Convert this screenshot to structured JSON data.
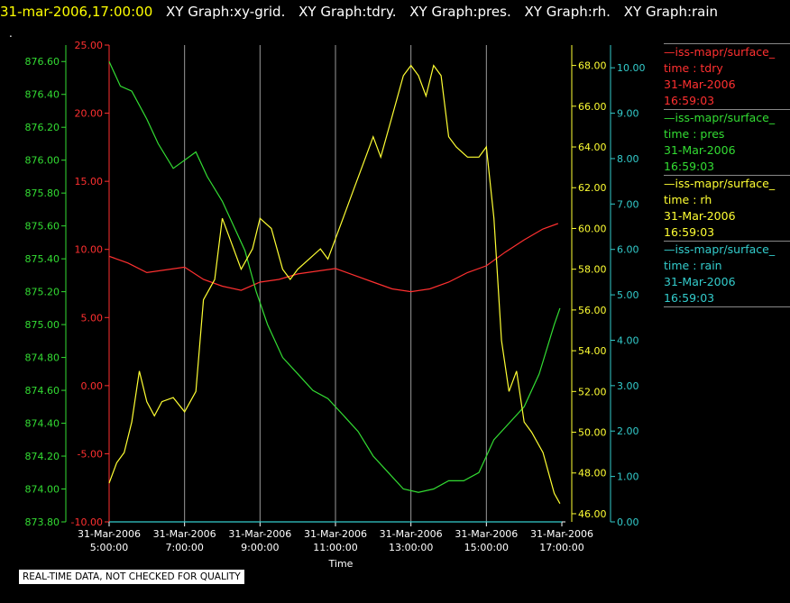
{
  "header": {
    "datetime": "31-mar-2006,17:00:00",
    "titles": [
      "XY Graph:xy-grid.",
      "XY Graph:tdry.",
      "XY Graph:pres.",
      "XY Graph:rh.",
      "XY Graph:rain"
    ]
  },
  "dot": ".",
  "note": "REAL-TIME DATA, NOT CHECKED FOR QUALITY",
  "legend": [
    {
      "line1": "—iss-mapr/surface_",
      "line2": "time : tdry",
      "line3": "31-Mar-2006",
      "line4": "16:59:03",
      "color": "#ff3030"
    },
    {
      "line1": "—iss-mapr/surface_",
      "line2": "time : pres",
      "line3": "31-Mar-2006",
      "line4": "16:59:03",
      "color": "#33dd33"
    },
    {
      "line1": "—iss-mapr/surface_",
      "line2": "time : rh",
      "line3": "31-Mar-2006",
      "line4": "16:59:03",
      "color": "#ffff33"
    },
    {
      "line1": "—iss-mapr/surface_",
      "line2": "time : rain",
      "line3": "31-Mar-2006",
      "line4": "16:59:03",
      "color": "#33cccc"
    }
  ],
  "chart_data": {
    "type": "line",
    "xlabel": "Time",
    "x_ticks": [
      {
        "d": "31-Mar-2006",
        "t": "5:00:00",
        "h": 5
      },
      {
        "d": "31-Mar-2006",
        "t": "7:00:00",
        "h": 7
      },
      {
        "d": "31-Mar-2006",
        "t": "9:00:00",
        "h": 9
      },
      {
        "d": "31-Mar-2006",
        "t": "11:00:00",
        "h": 11
      },
      {
        "d": "31-Mar-2006",
        "t": "13:00:00",
        "h": 13
      },
      {
        "d": "31-Mar-2006",
        "t": "15:00:00",
        "h": 15
      },
      {
        "d": "31-Mar-2006",
        "t": "17:00:00",
        "h": 17
      }
    ],
    "xlim_hours": [
      5,
      17
    ],
    "axes": {
      "pres": {
        "color": "#33dd33",
        "range": [
          873.8,
          876.7
        ],
        "ticks": [
          "873.80",
          "874.00",
          "874.20",
          "874.40",
          "874.60",
          "874.80",
          "875.00",
          "875.20",
          "875.40",
          "875.60",
          "875.80",
          "876.00",
          "876.20",
          "876.40",
          "876.60"
        ]
      },
      "tdry": {
        "color": "#ff3030",
        "range": [
          -10,
          25
        ],
        "ticks": [
          "-10.00",
          "-5.00",
          "0.00",
          "5.00",
          "10.00",
          "15.00",
          "20.00",
          "25.00"
        ]
      },
      "rh": {
        "color": "#ffff33",
        "range": [
          45.6,
          69.0
        ],
        "ticks": [
          "46.00",
          "48.00",
          "50.00",
          "52.00",
          "54.00",
          "56.00",
          "58.00",
          "60.00",
          "62.00",
          "64.00",
          "66.00",
          "68.00"
        ]
      },
      "rain": {
        "color": "#33cccc",
        "range": [
          0,
          10.5
        ],
        "ticks": [
          "0.00",
          "1.00",
          "2.00",
          "3.00",
          "4.00",
          "5.00",
          "6.00",
          "7.00",
          "8.00",
          "9.00",
          "10.00"
        ]
      }
    },
    "series": [
      {
        "key": "tdry",
        "color": "#ff3030",
        "x": [
          5.0,
          5.5,
          6.0,
          6.5,
          7.0,
          7.5,
          8.0,
          8.5,
          9.0,
          9.5,
          10.0,
          10.5,
          11.0,
          11.5,
          12.0,
          12.5,
          13.0,
          13.5,
          14.0,
          14.5,
          15.0,
          15.5,
          16.0,
          16.5,
          16.9
        ],
        "y": [
          9.5,
          9.0,
          8.3,
          8.5,
          8.7,
          7.8,
          7.3,
          7.0,
          7.6,
          7.8,
          8.2,
          8.4,
          8.6,
          8.1,
          7.6,
          7.1,
          6.9,
          7.1,
          7.6,
          8.3,
          8.8,
          9.8,
          10.7,
          11.5,
          11.9
        ]
      },
      {
        "key": "pres",
        "color": "#33dd33",
        "x": [
          5.0,
          5.3,
          5.6,
          6.0,
          6.3,
          6.7,
          7.0,
          7.3,
          7.6,
          8.0,
          8.3,
          8.6,
          8.9,
          9.2,
          9.6,
          10.0,
          10.4,
          10.8,
          11.2,
          11.6,
          12.0,
          12.4,
          12.8,
          13.2,
          13.6,
          14.0,
          14.4,
          14.8,
          15.2,
          15.6,
          16.0,
          16.4,
          16.8,
          16.95
        ],
        "y": [
          876.6,
          876.45,
          876.42,
          876.25,
          876.1,
          875.95,
          876.0,
          876.05,
          875.9,
          875.75,
          875.6,
          875.45,
          875.2,
          875.0,
          874.8,
          874.7,
          874.6,
          874.55,
          874.45,
          874.35,
          874.2,
          874.1,
          874.0,
          873.98,
          874.0,
          874.05,
          874.05,
          874.1,
          874.3,
          874.4,
          874.5,
          874.7,
          875.0,
          875.1
        ]
      },
      {
        "key": "rh",
        "color": "#ffff33",
        "x": [
          5.0,
          5.2,
          5.4,
          5.6,
          5.8,
          6.0,
          6.2,
          6.4,
          6.7,
          7.0,
          7.3,
          7.5,
          7.8,
          8.0,
          8.2,
          8.5,
          8.8,
          9.0,
          9.3,
          9.6,
          9.8,
          10.0,
          10.3,
          10.6,
          10.8,
          11.0,
          11.2,
          11.5,
          11.8,
          12.0,
          12.2,
          12.5,
          12.8,
          13.0,
          13.2,
          13.4,
          13.6,
          13.8,
          14.0,
          14.2,
          14.5,
          14.8,
          15.0,
          15.2,
          15.4,
          15.6,
          15.8,
          16.0,
          16.2,
          16.5,
          16.8,
          16.95
        ],
        "y": [
          47.5,
          48.5,
          49.0,
          50.5,
          53.0,
          51.5,
          50.8,
          51.5,
          51.7,
          51.0,
          52.0,
          56.5,
          57.5,
          60.5,
          59.5,
          58.0,
          59.0,
          60.5,
          60.0,
          58.0,
          57.5,
          58.0,
          58.5,
          59.0,
          58.5,
          59.5,
          60.5,
          62.0,
          63.5,
          64.5,
          63.5,
          65.5,
          67.5,
          68.0,
          67.5,
          66.5,
          68.0,
          67.5,
          64.5,
          64.0,
          63.5,
          63.5,
          64.0,
          60.5,
          54.5,
          52.0,
          53.0,
          50.5,
          50.0,
          49.0,
          47.0,
          46.5
        ]
      },
      {
        "key": "rain",
        "color": "#33cccc",
        "x": [
          5.0,
          17.0
        ],
        "y": [
          0.0,
          0.0
        ]
      }
    ]
  }
}
